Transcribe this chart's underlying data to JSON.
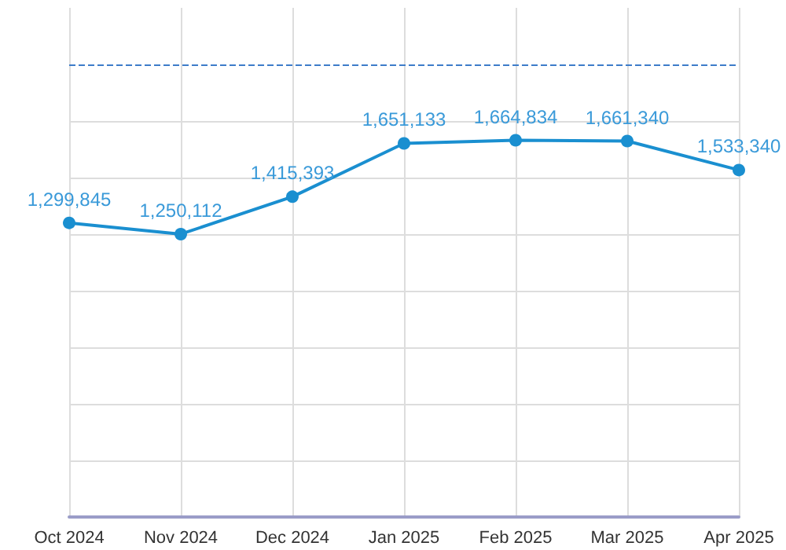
{
  "chart_data": {
    "type": "line",
    "categories": [
      "Oct 2024",
      "Nov 2024",
      "Dec 2024",
      "Jan 2025",
      "Feb 2025",
      "Mar 2025",
      "Apr 2025"
    ],
    "series": [
      {
        "color": "#1a8fd0",
        "values": [
          1299845,
          1250112,
          1415393,
          1651133,
          1664834,
          1661340,
          1533340
        ],
        "value_labels": [
          "1,299,845",
          "1,250,112",
          "1,415,393",
          "1,651,133",
          "1,664,834",
          "1,661,340",
          "1,533,340"
        ]
      }
    ],
    "ylim": [
      0,
      2250000
    ],
    "yticks": [
      {
        "value": 0,
        "label": null
      },
      {
        "value": 250000,
        "label": null
      },
      {
        "value": 500000,
        "label": null
      },
      {
        "value": 750000,
        "label": null
      },
      {
        "value": 1000000,
        "label": null
      },
      {
        "value": 1250000,
        "label": null
      },
      {
        "value": 1500000,
        "label": null
      },
      {
        "value": 1750000,
        "label": null
      }
    ],
    "tick_labels": "x",
    "ref_lines": [
      {
        "axis": "y",
        "value": 2000000,
        "color": "#3d7cc9",
        "line_style": "dashed"
      }
    ],
    "grid": true,
    "marker": "circle",
    "line_style": "solid"
  }
}
